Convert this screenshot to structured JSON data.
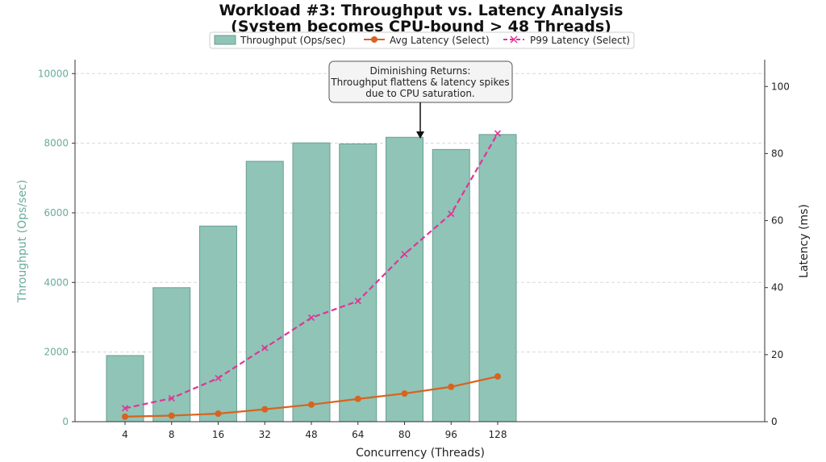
{
  "chart_data": {
    "type": "bar",
    "title": "Workload #3: Throughput vs. Latency Analysis",
    "subtitle": "(System becomes CPU-bound > 48 Threads)",
    "xlabel": "Concurrency (Threads)",
    "ylabel_left": "Throughput (Ops/sec)",
    "ylabel_right": "Latency (ms)",
    "categories": [
      "4",
      "8",
      "16",
      "32",
      "48",
      "64",
      "80",
      "96",
      "128"
    ],
    "ylim_left": [
      0,
      10400
    ],
    "ylim_right": [
      0,
      108
    ],
    "yticks_left": [
      0,
      2000,
      4000,
      6000,
      8000,
      10000
    ],
    "yticks_right": [
      0,
      20,
      40,
      60,
      80,
      100
    ],
    "grid": "horizontal dashed",
    "legend_placement": "top-center",
    "series": [
      {
        "name": "Throughput (Ops/sec)",
        "type": "bar",
        "axis": "left",
        "color": "#8fc4b7",
        "values": [
          1900,
          3850,
          5620,
          7480,
          8010,
          7980,
          8170,
          7820,
          8250
        ]
      },
      {
        "name": "Avg Latency (Select)",
        "type": "line",
        "axis": "right",
        "color": "#d9631e",
        "values": [
          1.5,
          1.8,
          2.4,
          3.7,
          5.1,
          6.8,
          8.4,
          10.4,
          13.5
        ]
      },
      {
        "name": "P99 Latency (Select)",
        "type": "line",
        "axis": "right",
        "color": "#de3597",
        "values": [
          4,
          7,
          13,
          22,
          31,
          36,
          50,
          62,
          86
        ]
      }
    ],
    "annotation": {
      "lines": [
        "Diminishing Returns:",
        "Throughput flattens & latency spikes",
        "due to CPU saturation."
      ],
      "target_category": "48"
    }
  }
}
